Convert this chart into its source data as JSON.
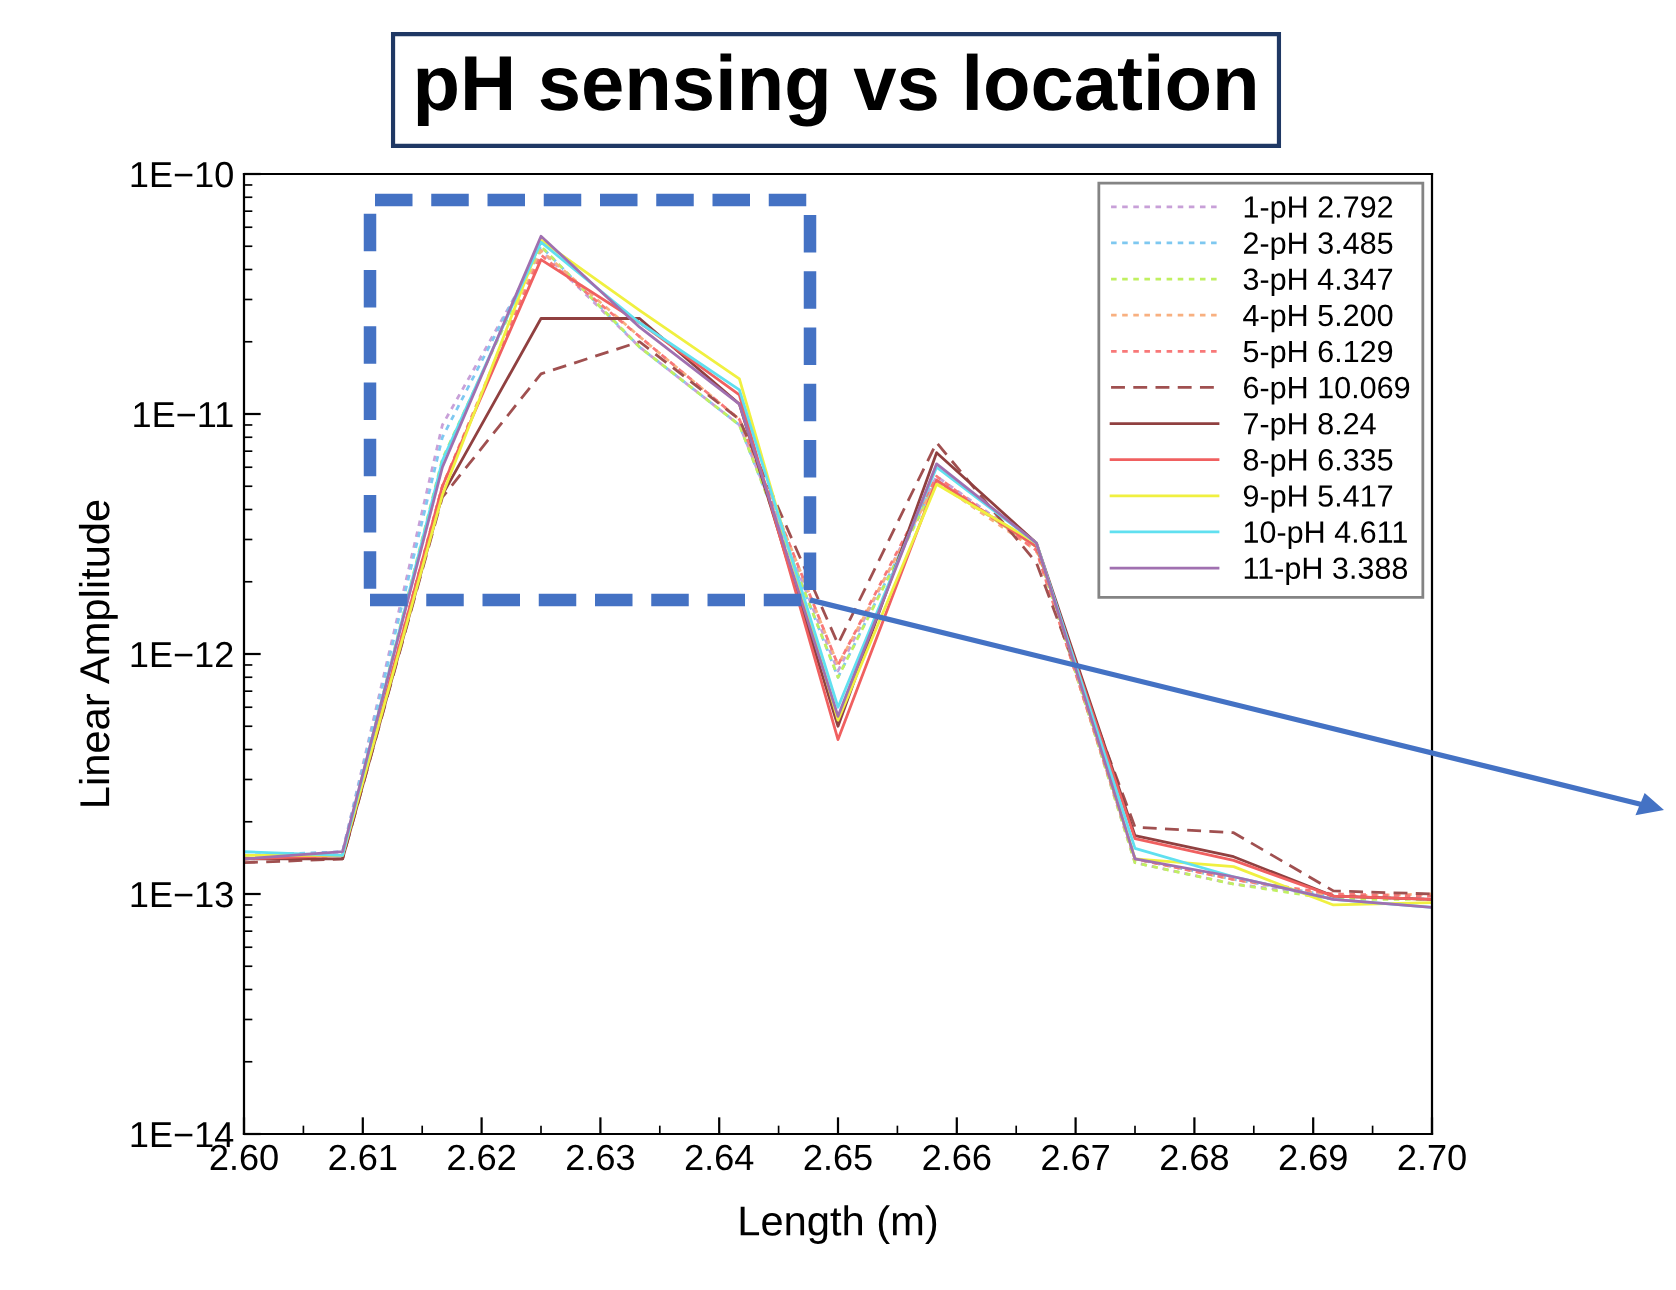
{
  "chart_data": {
    "type": "line",
    "title": "pH sensing vs location",
    "xlabel": "Length (m)",
    "ylabel": "Linear Amplitude",
    "x": [
      2.6,
      2.6083,
      2.6167,
      2.625,
      2.6333,
      2.6417,
      2.65,
      2.6583,
      2.6667,
      2.675,
      2.6833,
      2.6917,
      2.7
    ],
    "series": [
      {
        "name": "1-pH 2.792",
        "color": "#c8a0d8",
        "line_style": "dotted",
        "values": [
          1.4e-13,
          1.5e-13,
          9e-12,
          4.8e-11,
          1.9e-11,
          9e-12,
          8.5e-13,
          5.5e-12,
          2.8e-12,
          1.35e-13,
          1.1e-13,
          9.8e-14,
          9.5e-14
        ]
      },
      {
        "name": "2-pH 3.485",
        "color": "#7ec8f0",
        "line_style": "dotted",
        "values": [
          1.45e-13,
          1.5e-13,
          8e-12,
          5e-11,
          1.9e-11,
          9e-12,
          8e-13,
          5.3e-12,
          2.8e-12,
          1.4e-13,
          1.15e-13,
          9.8e-14,
          9.5e-14
        ]
      },
      {
        "name": "3-pH 4.347",
        "color": "#c0f060",
        "line_style": "dotted",
        "values": [
          1.4e-13,
          1.45e-13,
          6.5e-12,
          5e-11,
          1.9e-11,
          9e-12,
          8e-13,
          5.2e-12,
          2.8e-12,
          1.35e-13,
          1.1e-13,
          9.5e-14,
          9.5e-14
        ]
      },
      {
        "name": "4-pH 5.200",
        "color": "#f8b080",
        "line_style": "dotted",
        "values": [
          1.4e-13,
          1.45e-13,
          5e-12,
          4.8e-11,
          2.1e-11,
          9.5e-12,
          9e-13,
          5.2e-12,
          2.7e-12,
          1.4e-13,
          1.15e-13,
          9.8e-14,
          1e-13
        ]
      },
      {
        "name": "5-pH 6.129",
        "color": "#f87878",
        "line_style": "dotted",
        "values": [
          1.4e-13,
          1.45e-13,
          5e-12,
          4.6e-11,
          2.1e-11,
          9.5e-12,
          9e-13,
          5.5e-12,
          2.7e-12,
          1.4e-13,
          1.15e-13,
          1e-13,
          9.8e-14
        ]
      },
      {
        "name": "6-pH 10.069",
        "color": "#a05050",
        "line_style": "dashed",
        "values": [
          1.35e-13,
          1.4e-13,
          4.5e-12,
          1.47e-11,
          2e-11,
          9.5e-12,
          1.1e-12,
          7.6e-12,
          2.4e-12,
          1.9e-13,
          1.8e-13,
          1.03e-13,
          1e-13
        ]
      },
      {
        "name": "7-pH 8.24",
        "color": "#904040",
        "line_style": "solid",
        "values": [
          1.4e-13,
          1.4e-13,
          4.6e-12,
          2.5e-11,
          2.5e-11,
          1.1e-11,
          5e-13,
          6.9e-12,
          2.9e-12,
          1.75e-13,
          1.43e-13,
          9.8e-14,
          9.5e-14
        ]
      },
      {
        "name": "8-pH 6.335",
        "color": "#f06060",
        "line_style": "solid",
        "values": [
          1.4e-13,
          1.45e-13,
          5e-12,
          4.4e-11,
          2.4e-11,
          1.2e-11,
          4.4e-13,
          5.3e-12,
          2.8e-12,
          1.7e-13,
          1.38e-13,
          9.8e-14,
          9.5e-14
        ]
      },
      {
        "name": "9-pH 5.417",
        "color": "#f0f040",
        "line_style": "solid",
        "values": [
          1.45e-13,
          1.45e-13,
          4.6e-12,
          5.3e-11,
          2.7e-11,
          1.4e-11,
          5.3e-13,
          5.1e-12,
          2.9e-12,
          1.4e-13,
          1.3e-13,
          9e-14,
          9.2e-14
        ]
      },
      {
        "name": "10-pH 4.611",
        "color": "#60e0f0",
        "line_style": "solid",
        "values": [
          1.5e-13,
          1.45e-13,
          6.4e-12,
          5.2e-11,
          2.4e-11,
          1.26e-11,
          6e-13,
          6e-12,
          2.9e-12,
          1.55e-13,
          1.18e-13,
          9.5e-14,
          8.8e-14
        ]
      },
      {
        "name": "11-pH 3.388",
        "color": "#a070b0",
        "line_style": "solid",
        "values": [
          1.4e-13,
          1.5e-13,
          6e-12,
          5.5e-11,
          2.3e-11,
          1.1e-11,
          5.5e-13,
          6.2e-12,
          2.9e-12,
          1.4e-13,
          1.18e-13,
          9.5e-14,
          8.8e-14
        ]
      }
    ],
    "log": "y",
    "xlim": [
      2.6,
      2.7
    ],
    "xticks": [
      {
        "value": 2.6,
        "label": "2.60"
      },
      2.61,
      2.62,
      2.63,
      2.64,
      2.65,
      2.66,
      2.67,
      2.68,
      2.69,
      {
        "value": 2.7,
        "label": "2.70"
      }
    ],
    "ylim": [
      1e-14,
      1e-10
    ],
    "yticks": [
      {
        "value": 1e-14,
        "label": "1E−14"
      },
      {
        "value": 1e-13,
        "label": "1E−13"
      },
      {
        "value": 1e-12,
        "label": "1E−12"
      },
      {
        "value": 1e-11,
        "label": "1E−11"
      },
      {
        "value": 1e-10,
        "label": "1E−10"
      }
    ],
    "grid": false,
    "legend": "top right",
    "marker": "none"
  }
}
